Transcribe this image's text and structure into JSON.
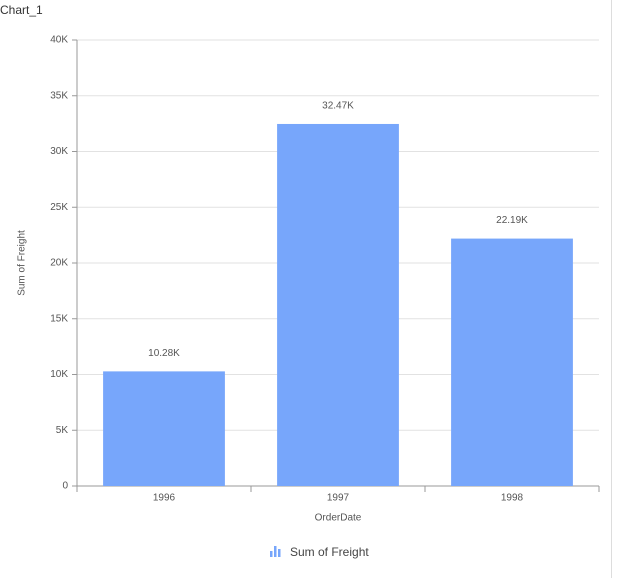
{
  "chart_data": {
    "type": "bar",
    "title": "Chart_1",
    "xlabel": "OrderDate",
    "ylabel": "Sum of Freight",
    "categories": [
      "1996",
      "1997",
      "1998"
    ],
    "series": [
      {
        "name": "Sum of Freight",
        "color": "#77a6fb",
        "values": [
          10280,
          32470,
          22190
        ],
        "value_labels": [
          "10.28K",
          "32.47K",
          "22.19K"
        ]
      }
    ],
    "ylim": [
      0,
      40000
    ],
    "yticks": [
      0,
      {
        "value": 5000,
        "label": "5K"
      },
      {
        "value": 10000,
        "label": "10K"
      },
      {
        "value": 15000,
        "label": "15K"
      },
      {
        "value": 20000,
        "label": "20K"
      },
      {
        "value": 25000,
        "label": "25K"
      },
      {
        "value": 30000,
        "label": "30K"
      },
      {
        "value": 35000,
        "label": "35K"
      },
      {
        "value": 40000,
        "label": "40K"
      }
    ],
    "grid": true,
    "legend": "bottom"
  }
}
